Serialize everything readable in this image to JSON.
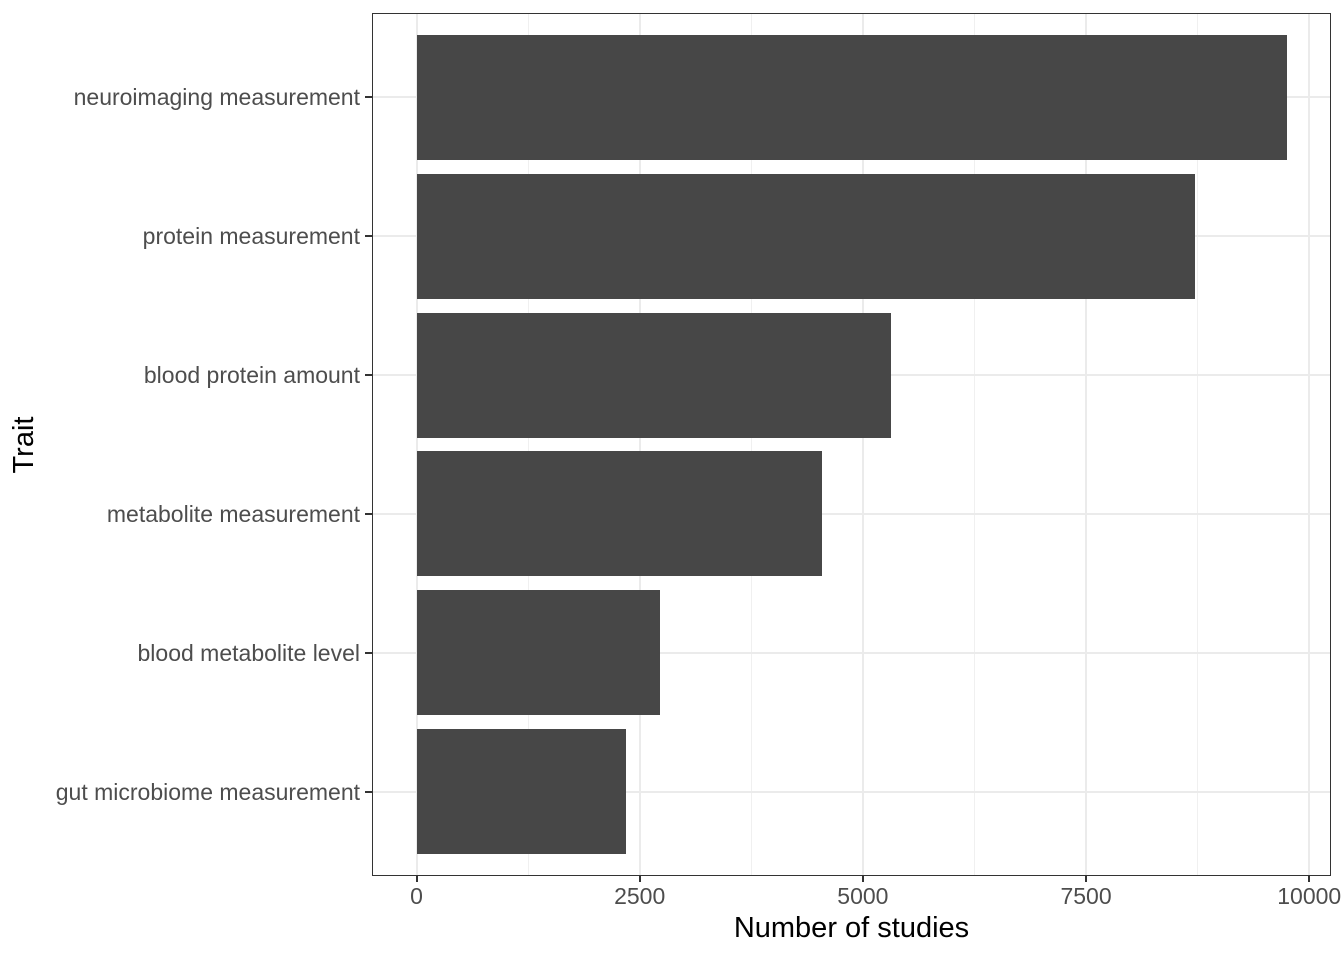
{
  "chart_data": {
    "type": "bar",
    "orientation": "horizontal",
    "title": "",
    "xlabel": "Number of studies",
    "ylabel": "Trait",
    "categories": [
      "neuroimaging measurement",
      "protein measurement",
      "blood protein amount",
      "metabolite measurement",
      "blood metabolite level",
      "gut microbiome measurement"
    ],
    "values": [
      9745,
      8715,
      5315,
      4540,
      2730,
      2350
    ],
    "x_ticks": [
      0,
      2500,
      5000,
      7500,
      10000
    ],
    "x_tick_labels": [
      "0",
      "2500",
      "5000",
      "7500",
      "10000"
    ],
    "x_minor_ticks": [
      1250,
      3750,
      6250,
      8750
    ],
    "xlim_display": [
      0,
      10000
    ],
    "axis_expansion_mult": 0.05,
    "bar_width_fraction": 0.9,
    "category_padding": 0.6,
    "legend": "none",
    "grid": {
      "vertical_major": true,
      "vertical_minor": true,
      "horizontal_major": true,
      "horizontal_minor": false
    },
    "colors": {
      "bar_fill": "#474747",
      "panel_background": "#ffffff",
      "figure_background": "#ffffff",
      "panel_border": "#333333",
      "grid_major": "#ebebeb",
      "grid_minor": "#f0f0f0",
      "tick_mark": "#333333",
      "tick_label": "#4d4d4d",
      "axis_title": "#000000"
    }
  }
}
